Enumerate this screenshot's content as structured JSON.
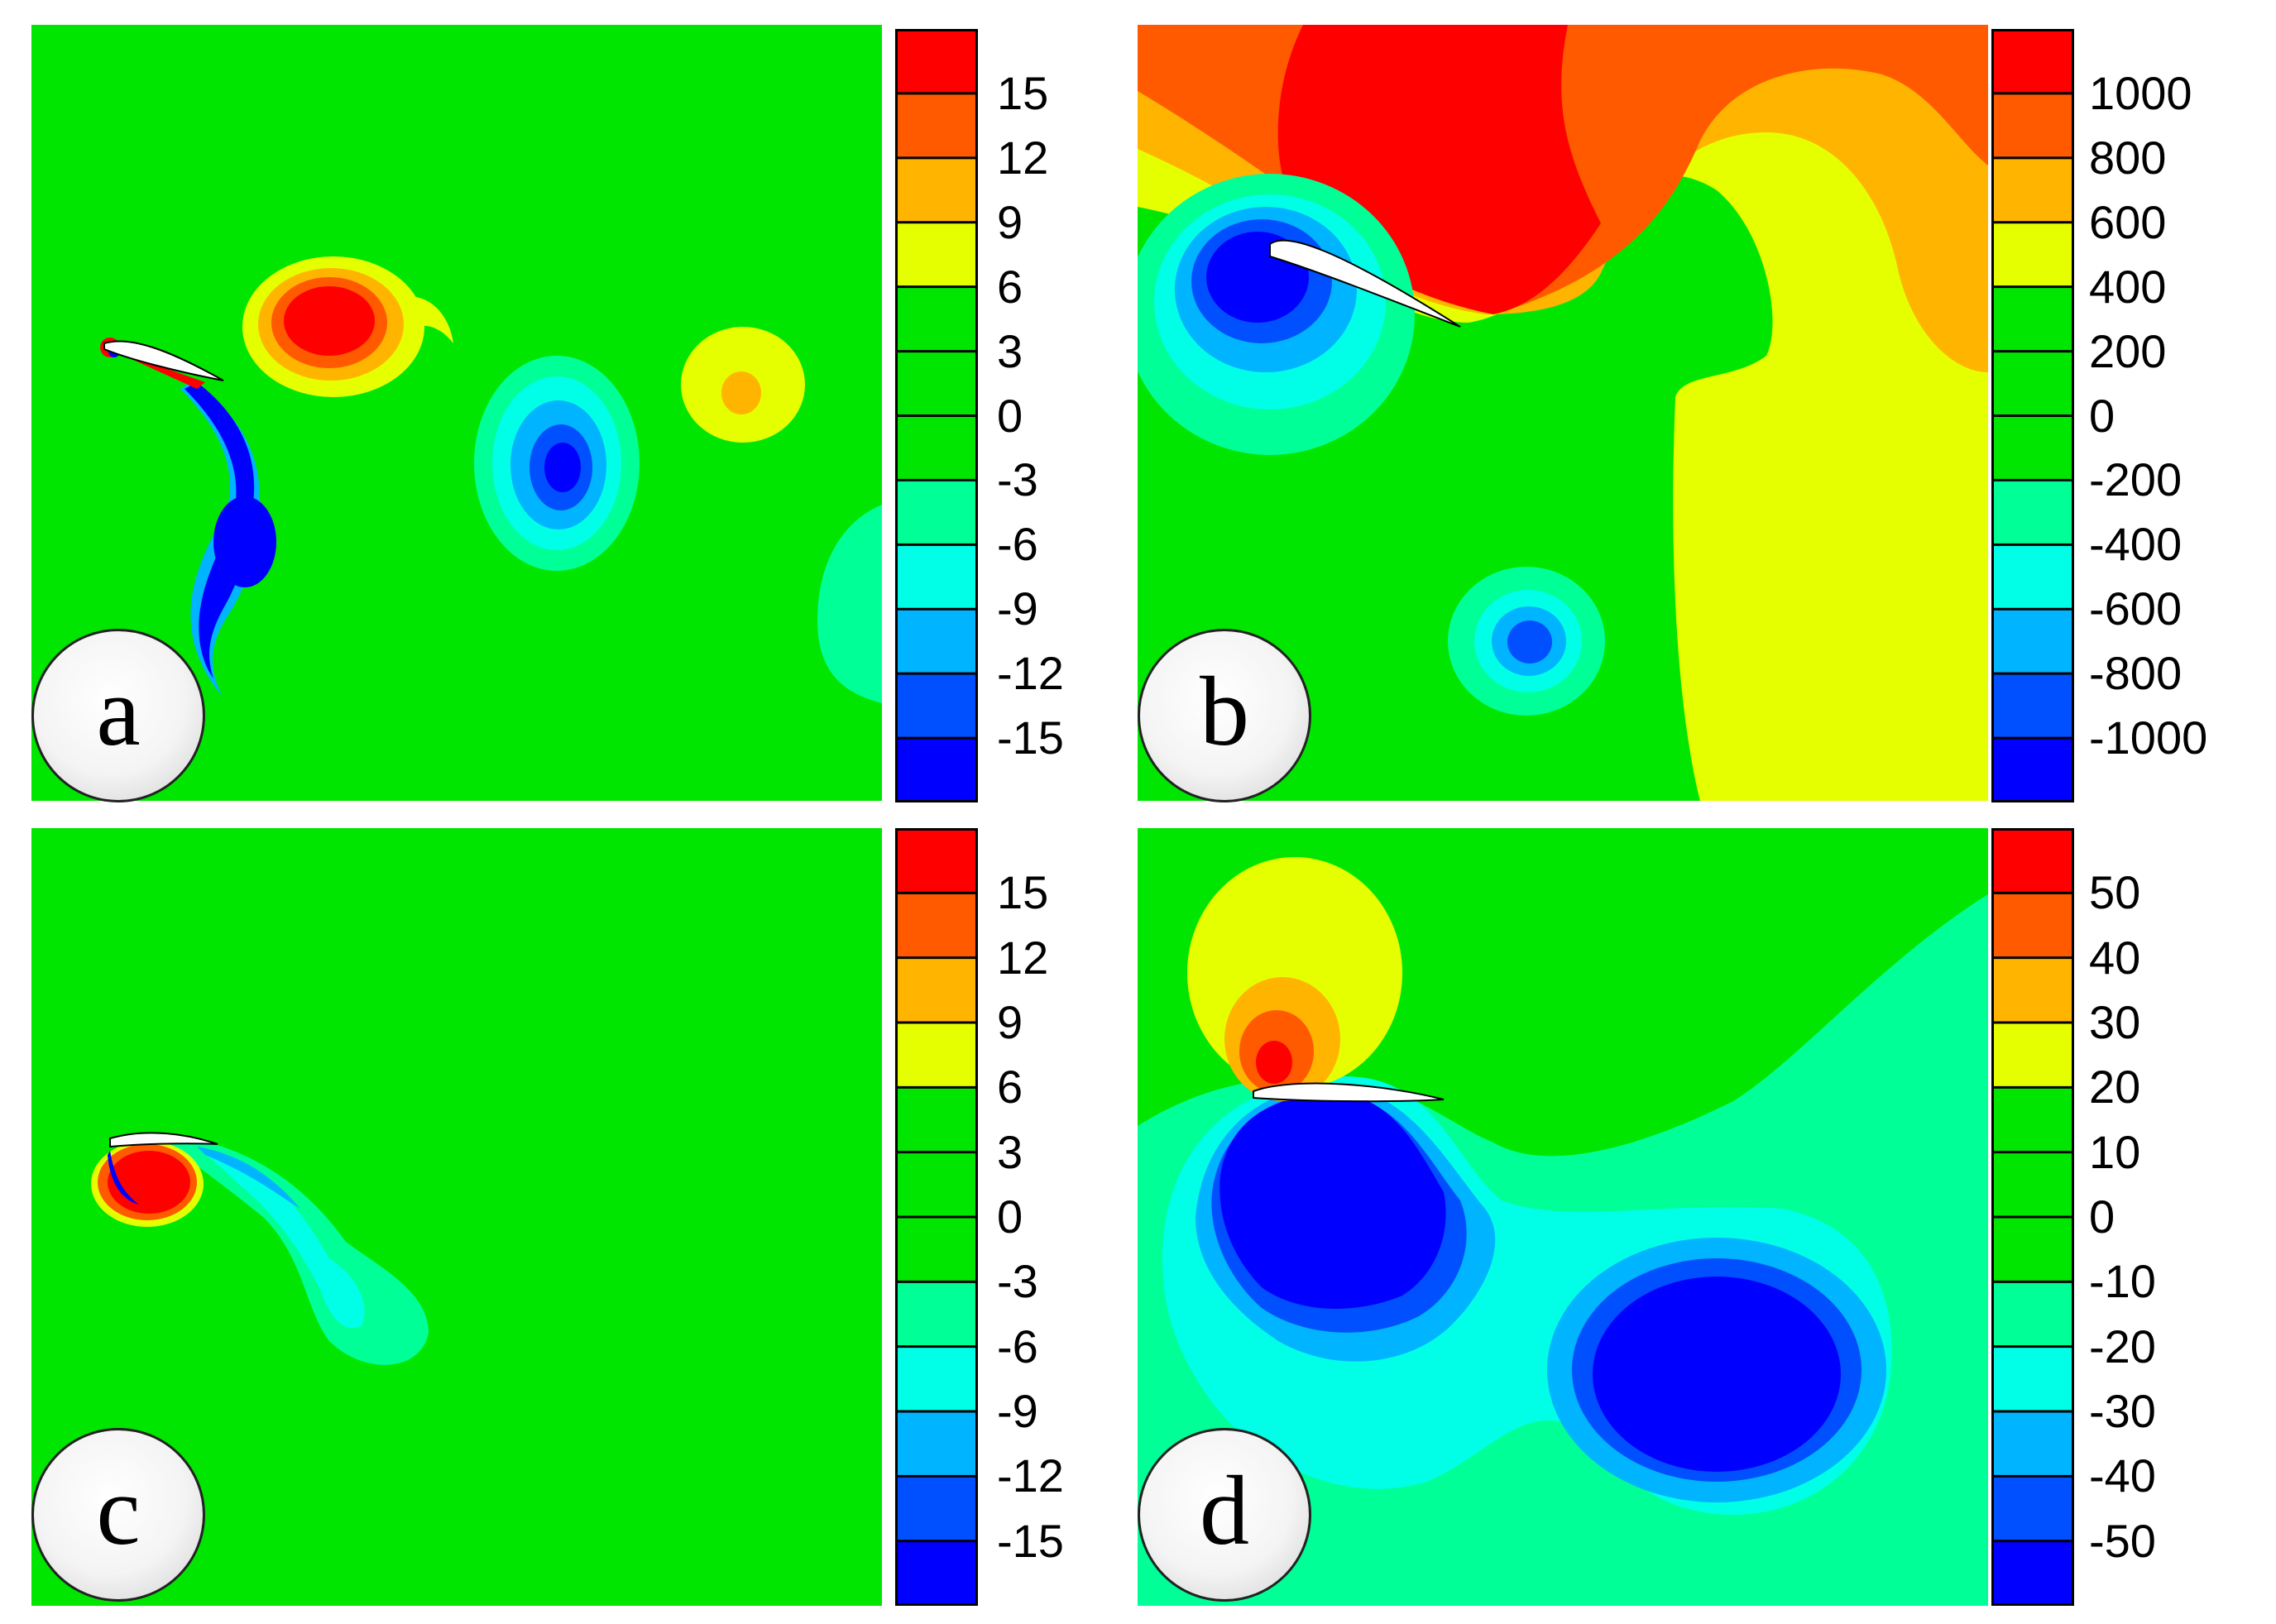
{
  "chart_data": [
    {
      "type": "heatmap",
      "panel_label": "a",
      "colorbar_ticks": [
        "15",
        "12",
        "9",
        "6",
        "3",
        "0",
        "-3",
        "-6",
        "-9",
        "-12",
        "-15"
      ],
      "colorbar_range": [
        -15,
        15
      ],
      "level_colors": [
        "#ff0000",
        "#ff5a00",
        "#ffb400",
        "#e6ff00",
        "#00e600",
        "#00e600",
        "#00e600",
        "#00ff96",
        "#00ffe6",
        "#00b4ff",
        "#0050ff",
        "#0000ff"
      ]
    },
    {
      "type": "heatmap",
      "panel_label": "b",
      "colorbar_ticks": [
        "1000",
        "800",
        "600",
        "400",
        "200",
        "0",
        "-200",
        "-400",
        "-600",
        "-800",
        "-1000"
      ],
      "colorbar_range": [
        -1000,
        1000
      ],
      "level_colors": [
        "#ff0000",
        "#ff5a00",
        "#ffb400",
        "#e6ff00",
        "#00e600",
        "#00e600",
        "#00e600",
        "#00ff96",
        "#00ffe6",
        "#00b4ff",
        "#0050ff",
        "#0000ff"
      ]
    },
    {
      "type": "heatmap",
      "panel_label": "c",
      "colorbar_ticks": [
        "15",
        "12",
        "9",
        "6",
        "3",
        "0",
        "-3",
        "-6",
        "-9",
        "-12",
        "-15"
      ],
      "colorbar_range": [
        -15,
        15
      ],
      "level_colors": [
        "#ff0000",
        "#ff5a00",
        "#ffb400",
        "#e6ff00",
        "#00e600",
        "#00e600",
        "#00e600",
        "#00ff96",
        "#00ffe6",
        "#00b4ff",
        "#0050ff",
        "#0000ff"
      ]
    },
    {
      "type": "heatmap",
      "panel_label": "d",
      "colorbar_ticks": [
        "50",
        "40",
        "30",
        "20",
        "10",
        "0",
        "-10",
        "-20",
        "-30",
        "-40",
        "-50"
      ],
      "colorbar_range": [
        -50,
        50
      ],
      "level_colors": [
        "#ff0000",
        "#ff5a00",
        "#ffb400",
        "#e6ff00",
        "#00e600",
        "#00e600",
        "#00e600",
        "#00ff96",
        "#00ffe6",
        "#00b4ff",
        "#0050ff",
        "#0000ff"
      ]
    }
  ],
  "colors": {
    "background_field": "#00e600",
    "airfoil": "#ffffff"
  }
}
